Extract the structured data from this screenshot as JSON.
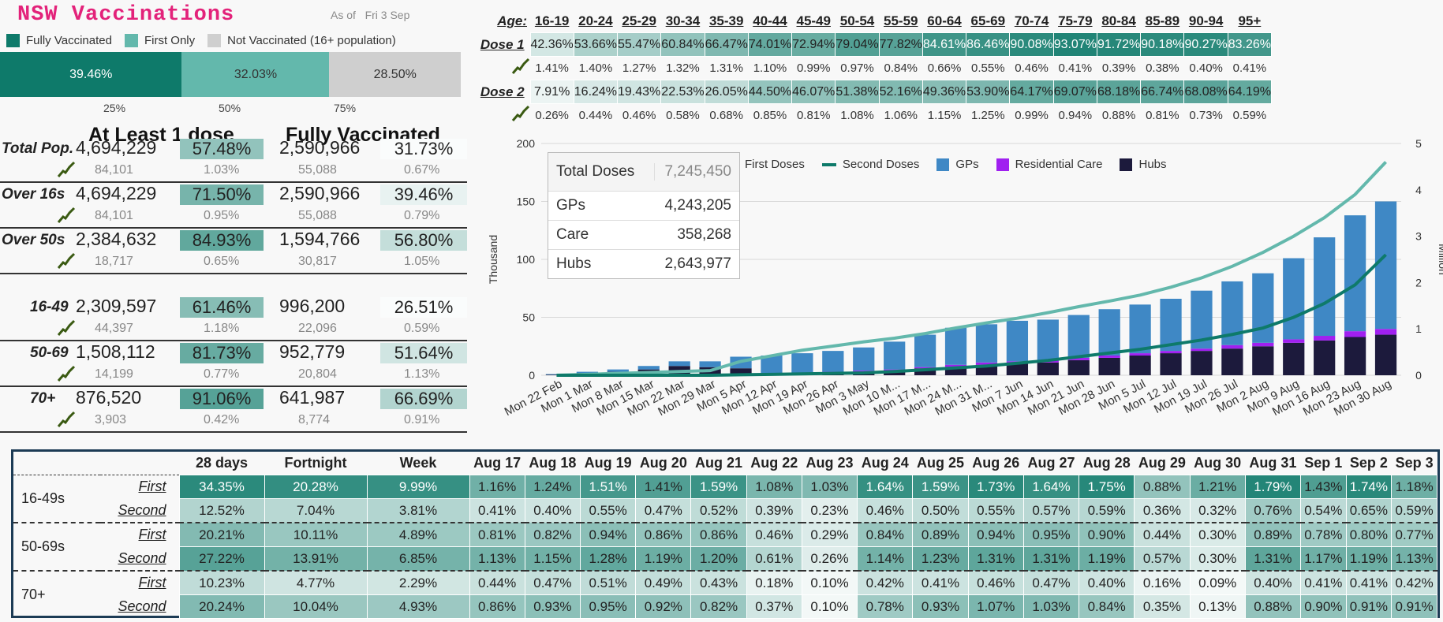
{
  "header": {
    "title": "NSW Vaccinations",
    "as_of": "As of",
    "date": "Fri 3 Sep"
  },
  "legend": {
    "items": [
      {
        "label": "Fully Vaccinated",
        "color": "#0e7a6a"
      },
      {
        "label": "First Only",
        "color": "#63b8ac"
      },
      {
        "label": "Not Vaccinated (16+ population)",
        "color": "#cfcfcf"
      }
    ]
  },
  "bar": {
    "segments": [
      {
        "label": "39.46%",
        "value": 39.46,
        "color": "#0e7a6a"
      },
      {
        "label": "32.03%",
        "value": 32.03,
        "color": "#63b8ac"
      },
      {
        "label": "28.50%",
        "value": 28.5,
        "color": "#cfcfcf"
      }
    ],
    "ticks": [
      "25%",
      "50%",
      "75%"
    ]
  },
  "summary": {
    "header_first": "At Least 1 dose",
    "header_full": "Fully Vaccinated",
    "rows": [
      {
        "label": "Total Pop.",
        "n1": "4,694,229",
        "p1": "57.48%",
        "p1_level": 0.45,
        "n2": "2,590,966",
        "p2": "31.73%",
        "p2_level": 0.0,
        "s1": "84,101",
        "s2": "1.03%",
        "s3": "55,088",
        "s4": "0.67%"
      },
      {
        "label": "Over 16s",
        "n1": "4,694,229",
        "p1": "71.50%",
        "p1_level": 0.7,
        "n2": "2,590,966",
        "p2": "39.46%",
        "p2_level": 0.15,
        "s1": "84,101",
        "s2": "0.95%",
        "s3": "55,088",
        "s4": "0.79%"
      },
      {
        "label": "Over 50s",
        "n1": "2,384,632",
        "p1": "84.93%",
        "p1_level": 0.9,
        "n2": "1,594,766",
        "p2": "56.80%",
        "p2_level": 0.45,
        "s1": "18,717",
        "s2": "0.65%",
        "s3": "30,817",
        "s4": "1.05%"
      },
      {
        "label": "16-49",
        "n1": "2,309,597",
        "p1": "61.46%",
        "p1_level": 0.55,
        "n2": "996,200",
        "p2": "26.51%",
        "p2_level": 0.0,
        "s1": "44,397",
        "s2": "1.18%",
        "s3": "22,096",
        "s4": "0.59%"
      },
      {
        "label": "50-69",
        "n1": "1,508,112",
        "p1": "81.73%",
        "p1_level": 0.85,
        "n2": "952,779",
        "p2": "51.64%",
        "p2_level": 0.35,
        "s1": "14,199",
        "s2": "0.77%",
        "s3": "20,804",
        "s4": "1.13%"
      },
      {
        "label": "70+",
        "n1": "876,520",
        "p1": "91.06%",
        "p1_level": 1.0,
        "n2": "641,987",
        "p2": "66.69%",
        "p2_level": 0.6,
        "s1": "3,903",
        "s2": "0.42%",
        "s3": "8,774",
        "s4": "0.91%"
      }
    ]
  },
  "age_table": {
    "age_label": "Age:",
    "ages": [
      "16-19",
      "20-24",
      "25-29",
      "30-34",
      "35-39",
      "40-44",
      "45-49",
      "50-54",
      "55-59",
      "60-64",
      "65-69",
      "70-74",
      "75-79",
      "80-84",
      "85-89",
      "90-94",
      "95+"
    ],
    "dose1_label": "Dose 1",
    "dose1": [
      "42.36%",
      "53.66%",
      "55.47%",
      "60.84%",
      "66.47%",
      "74.01%",
      "72.94%",
      "79.04%",
      "77.82%",
      "84.61%",
      "86.46%",
      "90.08%",
      "93.07%",
      "91.72%",
      "90.18%",
      "90.27%",
      "83.26%"
    ],
    "dose1_levels": [
      42.36,
      53.66,
      55.47,
      60.84,
      66.47,
      74.01,
      72.94,
      79.04,
      77.82,
      84.61,
      86.46,
      90.08,
      93.07,
      91.72,
      90.18,
      90.27,
      83.26
    ],
    "dose1_growth": [
      "1.41%",
      "1.40%",
      "1.27%",
      "1.32%",
      "1.31%",
      "1.10%",
      "0.99%",
      "0.97%",
      "0.84%",
      "0.66%",
      "0.55%",
      "0.46%",
      "0.41%",
      "0.39%",
      "0.38%",
      "0.40%",
      "0.41%"
    ],
    "dose2_label": "Dose 2",
    "dose2": [
      "7.91%",
      "16.24%",
      "19.43%",
      "22.53%",
      "26.05%",
      "44.50%",
      "46.07%",
      "51.38%",
      "52.16%",
      "49.36%",
      "53.90%",
      "64.17%",
      "69.07%",
      "68.18%",
      "66.74%",
      "68.08%",
      "64.19%"
    ],
    "dose2_levels": [
      7.91,
      16.24,
      19.43,
      22.53,
      26.05,
      44.5,
      46.07,
      51.38,
      52.16,
      49.36,
      53.9,
      64.17,
      69.07,
      68.18,
      66.74,
      68.08,
      64.19
    ],
    "dose2_growth": [
      "0.26%",
      "0.44%",
      "0.46%",
      "0.58%",
      "0.68%",
      "0.85%",
      "0.81%",
      "1.08%",
      "1.06%",
      "1.15%",
      "1.25%",
      "0.99%",
      "0.94%",
      "0.88%",
      "0.81%",
      "0.73%",
      "0.59%"
    ]
  },
  "tooltip": {
    "rows": [
      {
        "label": "Total Doses",
        "value": "7,245,450"
      },
      {
        "label": "GPs",
        "value": "4,243,205"
      },
      {
        "label": "Care",
        "value": "358,268"
      },
      {
        "label": "Hubs",
        "value": "2,643,977"
      }
    ]
  },
  "chart_legend": {
    "items": [
      {
        "label": "First Doses",
        "color": "#63b8ac",
        "kind": "line"
      },
      {
        "label": "Second Doses",
        "color": "#0e7a6a",
        "kind": "line"
      },
      {
        "label": "GPs",
        "color": "#3f88c5",
        "kind": "box"
      },
      {
        "label": "Residential Care",
        "color": "#a020f0",
        "kind": "box"
      },
      {
        "label": "Hubs",
        "color": "#1c1a3c",
        "kind": "box"
      }
    ]
  },
  "chart_data": {
    "type": "bar",
    "ylabel": "Thousand",
    "y2label": "Million",
    "ylim": [
      0,
      200
    ],
    "y2lim": [
      0,
      5
    ],
    "yticks": [
      "0",
      "50",
      "100",
      "150",
      "200"
    ],
    "y2ticks": [
      "0",
      "1",
      "2",
      "3",
      "4",
      "5"
    ],
    "categories": [
      "Mon 22 Feb",
      "Mon 1 Mar",
      "Mon 8 Mar",
      "Mon 15 Mar",
      "Mon 22 Mar",
      "Mon 29 Mar",
      "Mon 5 Apr",
      "Mon 12 Apr",
      "Mon 19 Apr",
      "Mon 26 Apr",
      "Mon 3 May",
      "Mon 10 M...",
      "Mon 17 M...",
      "Mon 24 M...",
      "Mon 31 M...",
      "Mon 7 Jun",
      "Mon 14 Jun",
      "Mon 21 Jun",
      "Mon 28 Jun",
      "Mon 5 Jul",
      "Mon 12 Jul",
      "Mon 19 Jul",
      "Mon 26 Jul",
      "Mon 2 Aug",
      "Mon 9 Aug",
      "Mon 16 Aug",
      "Mon 23 Aug",
      "Mon 30 Aug"
    ],
    "series": [
      {
        "name": "GPs",
        "values": [
          0.5,
          1,
          2,
          3,
          4,
          5,
          10,
          15,
          17,
          18,
          20,
          24,
          28,
          32,
          33,
          35,
          35,
          37,
          40,
          42,
          45,
          50,
          55,
          60,
          70,
          85,
          100,
          110
        ]
      },
      {
        "name": "Residential Care",
        "values": [
          0,
          0,
          0,
          0,
          0,
          0,
          0,
          1,
          1,
          1,
          1,
          1,
          1,
          2,
          2,
          2,
          2,
          2,
          2,
          2,
          2,
          2,
          3,
          3,
          3,
          4,
          5,
          5
        ]
      },
      {
        "name": "Hubs",
        "values": [
          0.5,
          2,
          3,
          5,
          8,
          7,
          6,
          1,
          1,
          2,
          3,
          4,
          6,
          7,
          9,
          10,
          11,
          13,
          15,
          17,
          19,
          21,
          23,
          25,
          28,
          30,
          33,
          35
        ]
      },
      {
        "name": "First Doses",
        "axis": "right",
        "values": [
          0,
          0.02,
          0.04,
          0.06,
          0.08,
          0.1,
          0.3,
          0.42,
          0.54,
          0.63,
          0.72,
          0.8,
          0.9,
          1.02,
          1.13,
          1.23,
          1.35,
          1.48,
          1.6,
          1.73,
          1.9,
          2.1,
          2.35,
          2.65,
          3.0,
          3.4,
          3.9,
          4.6
        ]
      },
      {
        "name": "Second Doses",
        "axis": "right",
        "values": [
          0,
          0,
          0,
          0,
          0,
          0,
          0.01,
          0.02,
          0.03,
          0.04,
          0.05,
          0.08,
          0.12,
          0.16,
          0.2,
          0.26,
          0.32,
          0.4,
          0.48,
          0.56,
          0.66,
          0.76,
          0.88,
          1.02,
          1.25,
          1.55,
          1.95,
          2.6
        ]
      }
    ]
  },
  "bottom": {
    "headers": [
      "28 days",
      "Fortnight",
      "Week",
      "Aug 17",
      "Aug 18",
      "Aug 19",
      "Aug 20",
      "Aug 21",
      "Aug 22",
      "Aug 23",
      "Aug 24",
      "Aug 25",
      "Aug 26",
      "Aug 27",
      "Aug 28",
      "Aug 29",
      "Aug 30",
      "Aug 31",
      "Sep 1",
      "Sep 2",
      "Sep 3"
    ],
    "groups": [
      {
        "label": "16-49s",
        "rows": [
          {
            "type": "First",
            "vals": [
              "34.35%",
              "20.28%",
              "9.99%",
              "1.16%",
              "1.24%",
              "1.51%",
              "1.41%",
              "1.59%",
              "1.08%",
              "1.03%",
              "1.64%",
              "1.59%",
              "1.73%",
              "1.64%",
              "1.75%",
              "0.88%",
              "1.21%",
              "1.79%",
              "1.43%",
              "1.74%",
              "1.18%"
            ]
          },
          {
            "type": "Second",
            "vals": [
              "12.52%",
              "7.04%",
              "3.81%",
              "0.41%",
              "0.40%",
              "0.55%",
              "0.47%",
              "0.52%",
              "0.39%",
              "0.23%",
              "0.46%",
              "0.50%",
              "0.55%",
              "0.57%",
              "0.59%",
              "0.36%",
              "0.32%",
              "0.76%",
              "0.54%",
              "0.65%",
              "0.59%"
            ]
          }
        ]
      },
      {
        "label": "50-69s",
        "rows": [
          {
            "type": "First",
            "vals": [
              "20.21%",
              "10.11%",
              "4.89%",
              "0.81%",
              "0.82%",
              "0.94%",
              "0.86%",
              "0.86%",
              "0.46%",
              "0.29%",
              "0.84%",
              "0.89%",
              "0.94%",
              "0.95%",
              "0.90%",
              "0.44%",
              "0.30%",
              "0.89%",
              "0.78%",
              "0.80%",
              "0.77%"
            ]
          },
          {
            "type": "Second",
            "vals": [
              "27.22%",
              "13.91%",
              "6.85%",
              "1.13%",
              "1.15%",
              "1.28%",
              "1.19%",
              "1.20%",
              "0.61%",
              "0.26%",
              "1.14%",
              "1.23%",
              "1.31%",
              "1.31%",
              "1.19%",
              "0.57%",
              "0.30%",
              "1.31%",
              "1.17%",
              "1.19%",
              "1.13%"
            ]
          }
        ]
      },
      {
        "label": "70+",
        "rows": [
          {
            "type": "First",
            "vals": [
              "10.23%",
              "4.77%",
              "2.29%",
              "0.44%",
              "0.47%",
              "0.51%",
              "0.49%",
              "0.43%",
              "0.18%",
              "0.10%",
              "0.42%",
              "0.41%",
              "0.46%",
              "0.47%",
              "0.40%",
              "0.16%",
              "0.09%",
              "0.40%",
              "0.41%",
              "0.41%",
              "0.42%"
            ]
          },
          {
            "type": "Second",
            "vals": [
              "20.24%",
              "10.04%",
              "4.93%",
              "0.86%",
              "0.93%",
              "0.95%",
              "0.92%",
              "0.82%",
              "0.37%",
              "0.10%",
              "0.78%",
              "0.93%",
              "1.07%",
              "1.03%",
              "0.84%",
              "0.35%",
              "0.13%",
              "0.88%",
              "0.90%",
              "0.91%",
              "0.91%"
            ]
          }
        ]
      }
    ]
  }
}
